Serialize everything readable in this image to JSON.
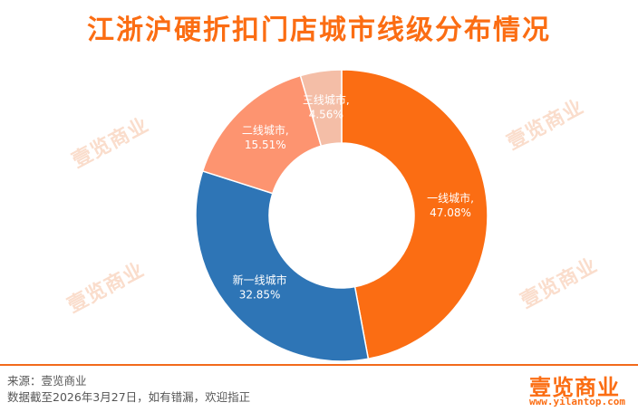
{
  "chart_data": {
    "type": "pie",
    "title": "江浙沪硬折扣门店城市线级分布情况",
    "slices": [
      {
        "name": "一线城市",
        "value": 47.08,
        "label": "一线城市,",
        "value_label": "47.08%",
        "color": "#fb6d13"
      },
      {
        "name": "新一线城市",
        "value": 32.85,
        "label": "新一线城市",
        "value_label": "32.85%",
        "color": "#2e75b6"
      },
      {
        "name": "二线城市",
        "value": 15.51,
        "label": "二线城市,",
        "value_label": "15.51%",
        "color": "#fd9470"
      },
      {
        "name": "三线城市",
        "value": 4.56,
        "label": "三线城市,",
        "value_label": "4.56%",
        "color": "#f4bea7"
      }
    ]
  },
  "watermark": "壹览商业",
  "footer": {
    "source": "来源：壹览商业",
    "note": "数据截至2026年3月27日，如有错漏，欢迎指正",
    "brand": "壹览商业",
    "url": "www.yilantop.com"
  },
  "colors": {
    "accent": "#fb6d13",
    "rule": "#f26a1b"
  }
}
